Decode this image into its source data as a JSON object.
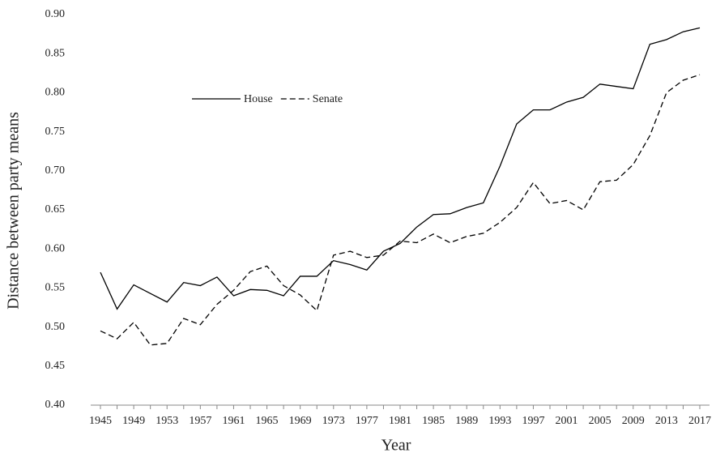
{
  "chart_data": {
    "type": "line",
    "x_label": "Year",
    "y_label": "Distance between party means",
    "categories": [
      "1945",
      null,
      "1949",
      null,
      "1953",
      null,
      "1957",
      null,
      "1961",
      null,
      "1965",
      null,
      "1969",
      null,
      "1973",
      null,
      "1977",
      null,
      "1981",
      null,
      "1985",
      null,
      "1989",
      null,
      "1993",
      null,
      "1997",
      null,
      "2001",
      null,
      "2005",
      null,
      "2009",
      null,
      "2013",
      null,
      "2017"
    ],
    "series": [
      {
        "name": "House",
        "color": "#000000",
        "dash": "solid",
        "values": [
          0.57,
          0.523,
          0.554,
          0.543,
          0.532,
          0.557,
          0.553,
          0.564,
          0.54,
          0.548,
          0.547,
          0.54,
          0.565,
          0.565,
          0.585,
          0.58,
          0.573,
          0.597,
          0.607,
          0.628,
          0.644,
          0.645,
          0.653,
          0.659,
          0.706,
          0.76,
          0.778,
          0.778,
          0.788,
          0.794,
          0.811,
          0.808,
          0.805,
          0.862,
          0.868,
          0.878,
          0.883
        ]
      },
      {
        "name": "Senate",
        "color": "#000000",
        "dash": "dashed",
        "values": [
          0.495,
          0.485,
          0.506,
          0.477,
          0.479,
          0.511,
          0.503,
          0.529,
          0.547,
          0.571,
          0.578,
          0.553,
          0.541,
          0.521,
          0.592,
          0.597,
          0.589,
          0.592,
          0.61,
          0.608,
          0.619,
          0.608,
          0.616,
          0.62,
          0.634,
          0.653,
          0.685,
          0.658,
          0.662,
          0.65,
          0.686,
          0.688,
          0.708,
          0.745,
          0.8,
          0.816,
          0.823
        ]
      }
    ],
    "ylim": [
      0.4,
      0.9
    ],
    "yticks": [
      {
        "value": 0.4,
        "label": "0.40"
      },
      {
        "value": 0.45,
        "label": "0.45"
      },
      {
        "value": 0.5,
        "label": "0.50"
      },
      {
        "value": 0.55,
        "label": "0.55"
      },
      {
        "value": 0.6,
        "label": "0.60"
      },
      {
        "value": 0.65,
        "label": "0.65"
      },
      {
        "value": 0.7,
        "label": "0.70"
      },
      {
        "value": 0.75,
        "label": "0.75"
      },
      {
        "value": 0.8,
        "label": "0.80"
      },
      {
        "value": 0.85,
        "label": "0.85"
      },
      {
        "value": 0.9,
        "label": "0.90"
      }
    ],
    "grid": false,
    "legend": "upper-left"
  }
}
